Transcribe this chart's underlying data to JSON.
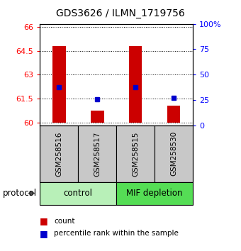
{
  "title": "GDS3626 / ILMN_1719756",
  "samples": [
    "GSM258516",
    "GSM258517",
    "GSM258515",
    "GSM258530"
  ],
  "bar_bottoms": [
    60.0,
    60.0,
    60.0,
    60.0
  ],
  "bar_tops": [
    64.82,
    60.72,
    64.82,
    61.05
  ],
  "percentile_values": [
    62.22,
    61.47,
    62.22,
    61.52
  ],
  "bar_color": "#cc0000",
  "marker_color": "#0000cc",
  "ylim_left": [
    59.8,
    66.2
  ],
  "ylim_right": [
    0,
    100
  ],
  "yticks_left": [
    60,
    61.5,
    63,
    64.5,
    66
  ],
  "yticks_right": [
    0,
    25,
    50,
    75,
    100
  ],
  "ytick_labels_left": [
    "60",
    "61.5",
    "63",
    "64.5",
    "66"
  ],
  "ytick_labels_right": [
    "0",
    "25",
    "50",
    "75",
    "100%"
  ],
  "groups": [
    {
      "label": "control",
      "samples": [
        0,
        1
      ],
      "color": "#b8f0b8"
    },
    {
      "label": "MIF depletion",
      "samples": [
        2,
        3
      ],
      "color": "#55dd55"
    }
  ],
  "protocol_label": "protocol",
  "legend_count_label": "count",
  "legend_pct_label": "percentile rank within the sample",
  "bar_width": 0.35,
  "title_fontsize": 10,
  "tick_fontsize": 8,
  "label_fontsize": 8,
  "group_fontsize": 8.5,
  "bg_color": "#c8c8c8"
}
